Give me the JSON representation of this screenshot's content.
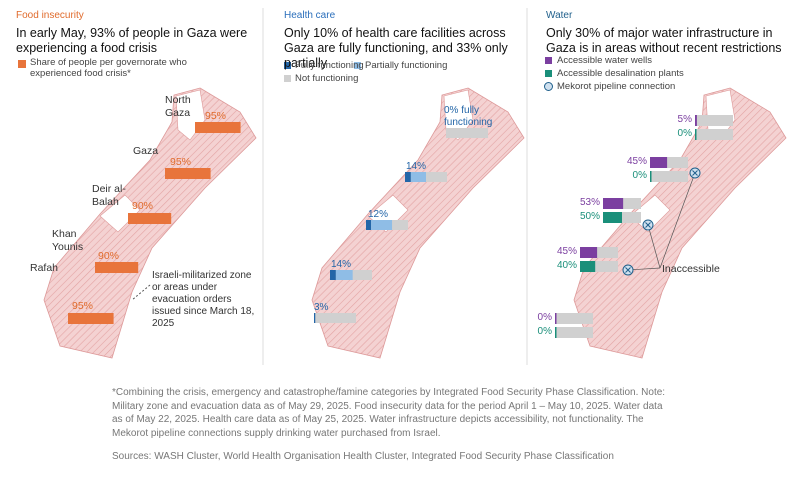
{
  "panels": [
    {
      "category": "Food insecurity",
      "title": "In early May, 93% of people in Gaza were experiencing a food crisis",
      "legend": [
        {
          "label": "Share of people per governorate who experienced food crisis*",
          "color": "#e8743b"
        }
      ],
      "items": [
        {
          "name": "North Gaza",
          "value": 95,
          "value_label": "95%"
        },
        {
          "name": "Gaza",
          "value": 95,
          "value_label": "95%"
        },
        {
          "name": "Deir al-Balah",
          "value": 90,
          "value_label": "90%"
        },
        {
          "name": "Khan Younis",
          "value": 90,
          "value_label": "90%"
        },
        {
          "name": "Rafah",
          "value": 95,
          "value_label": "95%"
        }
      ],
      "annotation": "Israeli-militarized zone or areas under evacuation orders issued since March 18, 2025"
    },
    {
      "category": "Health care",
      "title": "Only 10% of health care facilities across Gaza are fully functioning, and 33% only partially",
      "legend": [
        {
          "label": "Fully functioning",
          "color": "#2366a8"
        },
        {
          "label": "Partially functioning",
          "color": "#8fbde6"
        },
        {
          "label": "Not functioning",
          "color": "#d0d0d0"
        }
      ],
      "items": [
        {
          "fully": 0,
          "partially": 0,
          "label": "0% fully functioning"
        },
        {
          "fully": 14,
          "partially": 36,
          "label": "14%"
        },
        {
          "fully": 12,
          "partially": 50,
          "label": "12%"
        },
        {
          "fully": 14,
          "partially": 40,
          "label": "14%"
        },
        {
          "fully": 3,
          "partially": 0,
          "label": "3%"
        }
      ]
    },
    {
      "category": "Water",
      "title": "Only 30% of major water infrastructure in Gaza is in areas without recent restrictions",
      "legend": [
        {
          "label": "Accessible water wells",
          "color": "#7b3fa0"
        },
        {
          "label": "Accessible desalination plants",
          "color": "#1a8f7a"
        },
        {
          "label": "Mekorot pipeline connection"
        }
      ],
      "items": [
        {
          "wells": 5,
          "wells_label": "5%",
          "desalination": 0,
          "desalination_label": "0%"
        },
        {
          "wells": 45,
          "wells_label": "45%",
          "desalination": 0,
          "desalination_label": "0%"
        },
        {
          "wells": 53,
          "wells_label": "53%",
          "desalination": 50,
          "desalination_label": "50%"
        },
        {
          "wells": 45,
          "wells_label": "45%",
          "desalination": 40,
          "desalination_label": "40%"
        },
        {
          "wells": 0,
          "wells_label": "0%",
          "desalination": 0,
          "desalination_label": "0%"
        }
      ],
      "annotation": "Inaccessible"
    }
  ],
  "notes": [
    "*Combining the crisis, emergency and catastrophe/famine categories by Integrated Food Security Phase Classification. Note: Military zone and evacuation data as of May 29, 2025. Food insecurity data for the period April 1 – May 10, 2025. Water data as of May 22, 2025. Health care data as of May 25, 2025. Water infrastructure depicts accessibility, not functionality. The Mekorot pipeline connections supply drinking water purchased from Israel."
  ],
  "sources": "Sources: WASH Cluster, World Health Organisation Health Cluster, Integrated Food Security Phase Classification"
}
